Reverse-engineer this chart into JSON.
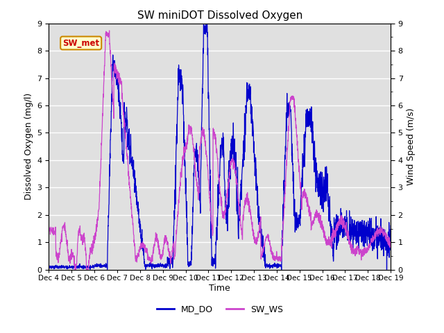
{
  "title": "SW miniDOT Dissolved Oxygen",
  "ylabel_left": "Dissolved Oxygen (mg/l)",
  "ylabel_right": "Wind Speed (m/s)",
  "xlabel": "Time",
  "ylim": [
    0.0,
    9.0
  ],
  "yticks": [
    0.0,
    1.0,
    2.0,
    3.0,
    4.0,
    5.0,
    6.0,
    7.0,
    8.0,
    9.0
  ],
  "xtick_labels": [
    "Dec 4",
    "Dec 5",
    "Dec 6",
    "Dec 7",
    "Dec 8",
    "Dec 9",
    "Dec 10",
    "Dec 11",
    "Dec 12",
    "Dec 13",
    "Dec 14",
    "Dec 15",
    "Dec 16",
    "Dec 17",
    "Dec 18",
    "Dec 19"
  ],
  "legend_labels": [
    "MD_DO",
    "SW_WS"
  ],
  "md_do_color": "#0000cc",
  "sw_ws_color": "#cc44cc",
  "annotation_text": "SW_met",
  "annotation_color": "#cc0000",
  "annotation_bg": "#ffffcc",
  "annotation_border": "#cc8800",
  "plot_bg": "#e0e0e0",
  "title_fontsize": 11,
  "axis_fontsize": 9,
  "tick_fontsize": 8
}
